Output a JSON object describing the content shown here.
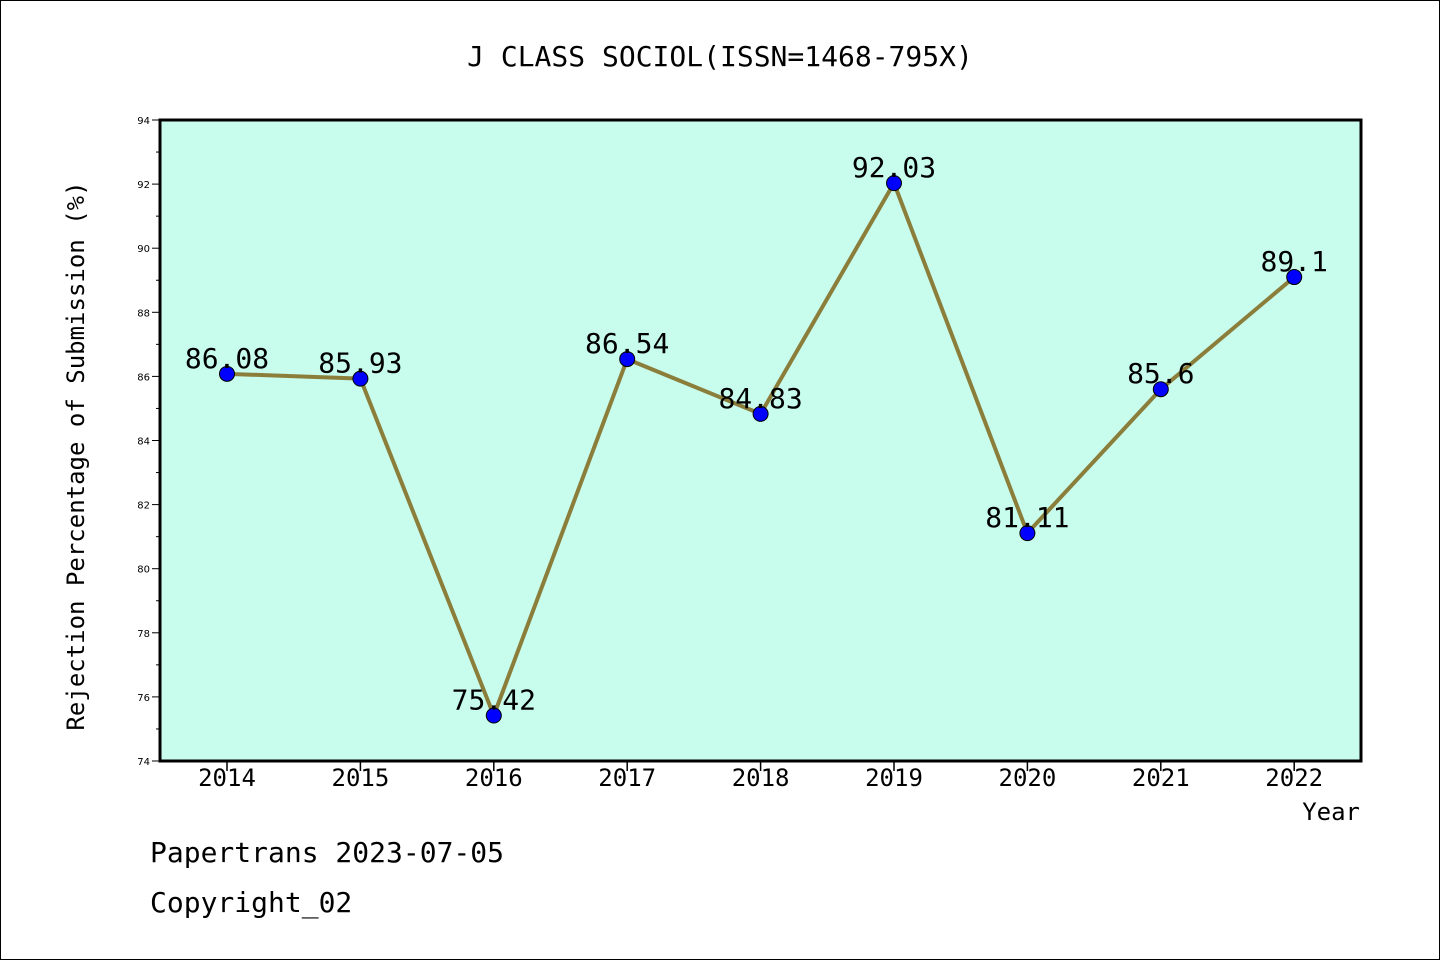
{
  "chart_data": {
    "type": "line",
    "title": "J CLASS SOCIOL(ISSN=1468-795X)",
    "xlabel": "Year",
    "ylabel": "Rejection Percentage of Submission (%)",
    "categories": [
      "2014",
      "2015",
      "2016",
      "2017",
      "2018",
      "2019",
      "2020",
      "2021",
      "2022"
    ],
    "series": [
      {
        "values": [
          86.08,
          85.93,
          75.42,
          86.54,
          84.83,
          92.03,
          81.11,
          85.6,
          89.1
        ]
      }
    ],
    "data_labels": [
      "86.08",
      "85.93",
      "75.42",
      "86.54",
      "84.83",
      "92.03",
      "81.11",
      "85.6",
      "89.1"
    ],
    "ylim": [
      74,
      94
    ],
    "yticks": [
      "74",
      "76",
      "78",
      "80",
      "82",
      "84",
      "86",
      "88",
      "90",
      "92",
      "94"
    ],
    "grid": false,
    "legend": "none",
    "colors": {
      "plot_background": "#c8fcec",
      "line": "#8b7e3b",
      "marker": "#0000ff"
    }
  },
  "footer": {
    "line1": "Papertrans 2023-07-05",
    "line2": "Copyright_02"
  }
}
